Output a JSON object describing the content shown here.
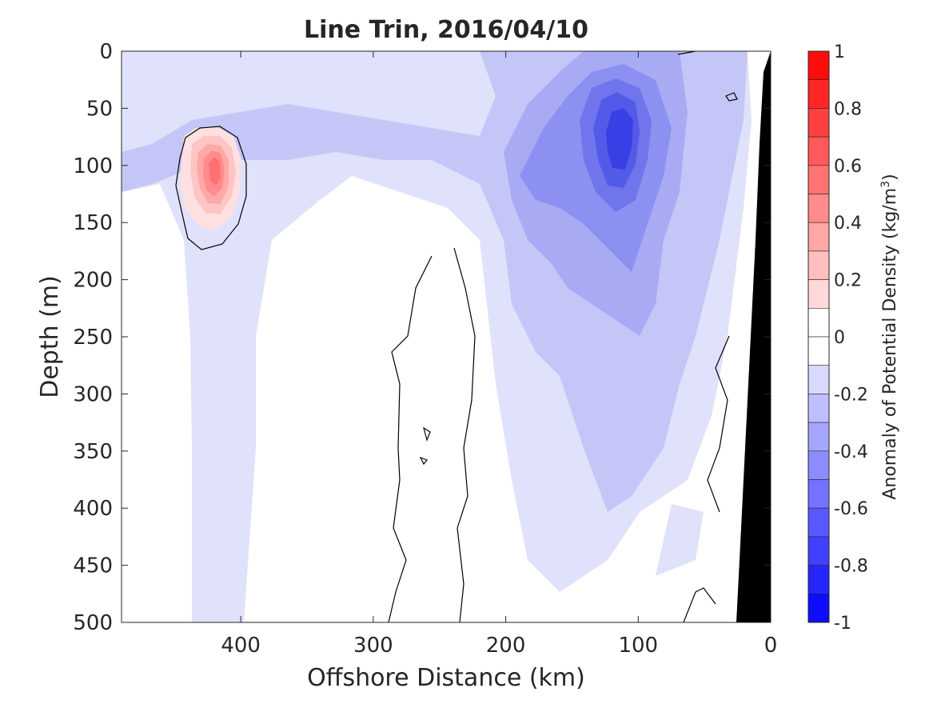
{
  "chart_data": {
    "type": "heatmap",
    "title": "Line Trin, 2016/04/10",
    "xlabel": "Offshore Distance (km)",
    "ylabel": "Depth (m)",
    "xlim": [
      490,
      0
    ],
    "ylim": [
      500,
      0
    ],
    "x_ticks": [
      400,
      300,
      200,
      100,
      0
    ],
    "y_ticks": [
      0,
      50,
      100,
      150,
      200,
      250,
      300,
      350,
      400,
      450,
      500
    ],
    "grid": false,
    "colorbar": {
      "label": "Anomaly of Potential Density (kg/m",
      "label_sup": "3",
      "label_close": ")",
      "range": [
        -1,
        1
      ],
      "tick_values": [
        1,
        0.8,
        0.6,
        0.4,
        0.2,
        0,
        -0.2,
        -0.4,
        -0.6,
        -0.8,
        -1
      ],
      "levels": [
        1,
        0.9,
        0.8,
        0.7,
        0.6,
        0.5,
        0.4,
        0.3,
        0.2,
        0.1,
        0,
        -0.1,
        -0.2,
        -0.3,
        -0.4,
        -0.5,
        -0.6,
        -0.7,
        -0.8,
        -0.9,
        -1
      ],
      "color_high": "#ff0000",
      "color_zero": "#ffffff",
      "color_low": "#0000ff"
    },
    "zero_contour_color": "#000000",
    "bathymetry_color": "#000000",
    "features": [
      {
        "kind": "dense_anomaly",
        "x": 420,
        "y": 100,
        "rx": 16,
        "ry": 25,
        "max": 0.55
      },
      {
        "kind": "light_anomaly",
        "x": 115,
        "y": 80,
        "rx": 22,
        "ry": 50,
        "min": -0.7
      },
      {
        "kind": "light_tongue",
        "x_from": 200,
        "x_to": 60,
        "y_from": 0,
        "y_to": 420,
        "min": -0.3
      },
      {
        "kind": "near_zero_column",
        "x_from": 280,
        "x_to": 230,
        "y_from": 175,
        "y_to": 500
      }
    ]
  }
}
